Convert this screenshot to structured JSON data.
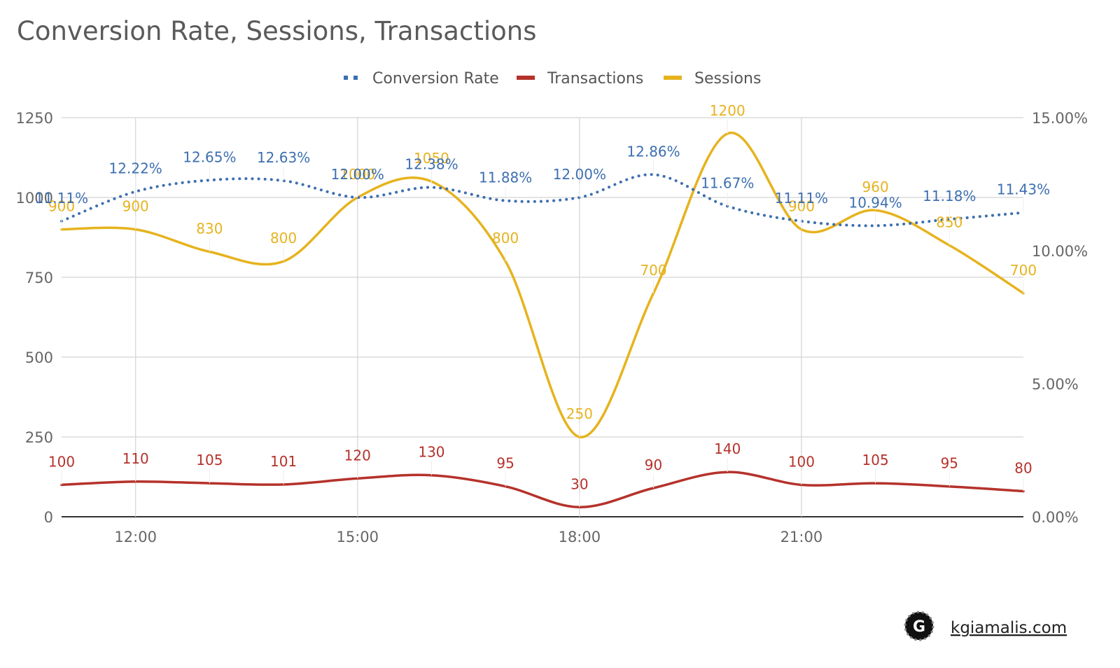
{
  "chart_data": {
    "type": "line",
    "title": "Conversion Rate, Sessions, Transactions",
    "x": [
      "11:00",
      "12:00",
      "13:00",
      "14:00",
      "15:00",
      "16:00",
      "17:00",
      "18:00",
      "19:00",
      "20:00",
      "21:00",
      "22:00",
      "23:00",
      "24:00"
    ],
    "x_tick_labels": [
      "12:00",
      "15:00",
      "18:00",
      "21:00"
    ],
    "y_left": {
      "ticks": [
        "0",
        "250",
        "500",
        "750",
        "1000",
        "1250"
      ],
      "range": [
        0,
        1250
      ]
    },
    "y_right": {
      "ticks": [
        "0.00%",
        "5.00%",
        "10.00%",
        "15.00%"
      ],
      "range": [
        0,
        15
      ]
    },
    "grid": true,
    "legend_position": "top-center",
    "series": [
      {
        "name": "Conversion Rate",
        "axis": "right",
        "style": "dotted",
        "color": "#3d6fb0",
        "values": [
          11.11,
          12.22,
          12.65,
          12.63,
          12.0,
          12.38,
          11.88,
          12.0,
          12.86,
          11.67,
          11.11,
          10.94,
          11.18,
          11.43
        ],
        "labels": [
          "11.11%",
          "12.22%",
          "12.65%",
          "12.63%",
          "12.00%",
          "12.38%",
          "11.88%",
          "12.00%",
          "12.86%",
          "11.67%",
          "11.11%",
          "10.94%",
          "11.18%",
          "11.43%"
        ]
      },
      {
        "name": "Transactions",
        "axis": "left",
        "style": "solid",
        "color": "#b5322b",
        "values": [
          100,
          110,
          105,
          101,
          120,
          130,
          95,
          30,
          90,
          140,
          100,
          105,
          95,
          80
        ],
        "labels": [
          "100",
          "110",
          "105",
          "101",
          "120",
          "130",
          "95",
          "30",
          "90",
          "140",
          "100",
          "105",
          "95",
          "80"
        ]
      },
      {
        "name": "Sessions",
        "axis": "left",
        "style": "solid",
        "color": "#e6b31e",
        "values": [
          900,
          900,
          830,
          800,
          1000,
          1050,
          800,
          250,
          700,
          1200,
          900,
          960,
          850,
          700
        ],
        "labels": [
          "900",
          "900",
          "830",
          "800",
          "1000",
          "1050",
          "800",
          "250",
          "700",
          "1200",
          "900",
          "960",
          "850",
          "700"
        ]
      }
    ]
  },
  "watermark": {
    "logo_letter": "G",
    "text": "kgiamalis.com"
  }
}
